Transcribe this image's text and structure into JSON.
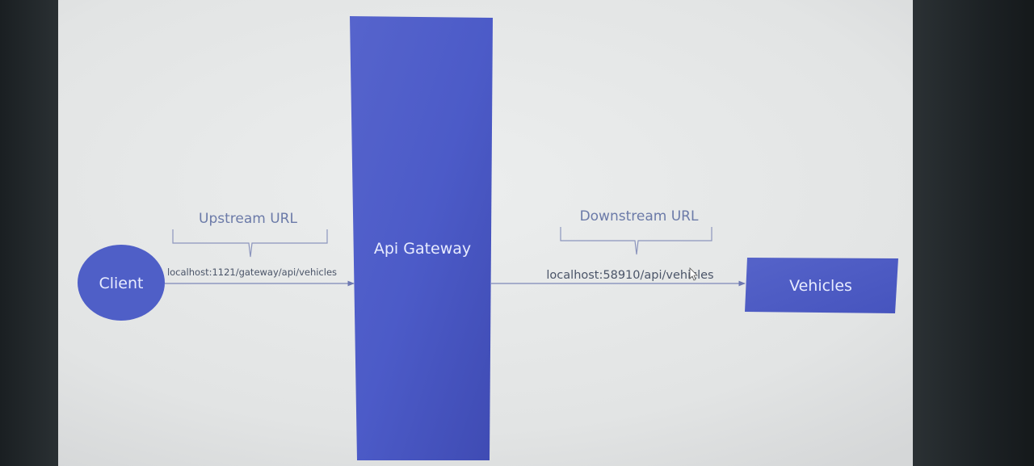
{
  "diagram": {
    "client": {
      "label": "Client"
    },
    "gateway": {
      "label": "Api Gateway"
    },
    "vehicles": {
      "label": "Vehicles"
    },
    "upstream": {
      "title": "Upstream URL",
      "url": "localhost:1121/gateway/api/vehicles"
    },
    "downstream": {
      "title": "Downstream URL",
      "url": "localhost:58910/api/vehicles"
    }
  },
  "colors": {
    "node_fill": "#4f5fc7",
    "gateway_fill": "#4a58c9",
    "text_on_node": "#e8ecff",
    "label_text": "#6b7aa8",
    "url_text": "#4a5468",
    "connector": "#7d87b8",
    "background": "#e4e6e6"
  }
}
